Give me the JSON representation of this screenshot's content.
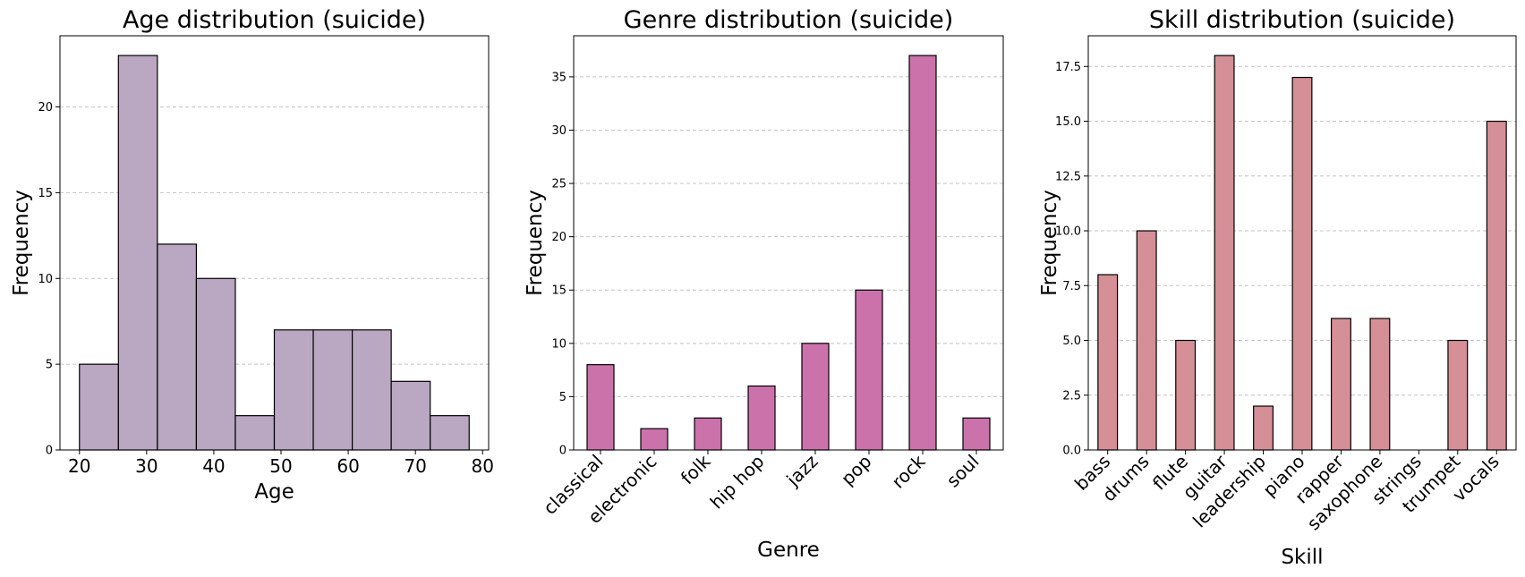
{
  "chart_data": [
    {
      "type": "bar",
      "subtype": "histogram",
      "title": "Age distribution (suicide)",
      "xlabel": "Age",
      "ylabel": "Frequency",
      "bin_edges": [
        20.0,
        25.8,
        31.6,
        37.4,
        43.2,
        49.0,
        54.8,
        60.6,
        66.4,
        72.2,
        78.0
      ],
      "values": [
        5,
        23,
        12,
        10,
        2,
        7,
        7,
        7,
        4,
        2
      ],
      "xlim": [
        17.1,
        80.9
      ],
      "ylim": [
        0,
        24.15
      ],
      "xticks": [
        20,
        30,
        40,
        50,
        60,
        70,
        80
      ],
      "yticks": [
        0,
        5,
        10,
        15,
        20
      ],
      "color": "#baa8c2",
      "grid": "y-dashed"
    },
    {
      "type": "bar",
      "title": "Genre distribution (suicide)",
      "xlabel": "Genre",
      "ylabel": "Frequency",
      "categories": [
        "classical",
        "electronic",
        "folk",
        "hip hop",
        "jazz",
        "pop",
        "rock",
        "soul"
      ],
      "values": [
        8,
        2,
        3,
        6,
        10,
        15,
        37,
        3
      ],
      "ylim": [
        0,
        38.85
      ],
      "yticks": [
        0,
        5,
        10,
        15,
        20,
        25,
        30,
        35
      ],
      "color": "#cb72ab",
      "grid": "y-dashed"
    },
    {
      "type": "bar",
      "title": "Skill distribution (suicide)",
      "xlabel": "Skill",
      "ylabel": "Frequency",
      "categories": [
        "bass",
        "drums",
        "flute",
        "guitar",
        "leadership",
        "piano",
        "rapper",
        "saxophone",
        "strings",
        "trumpet",
        "vocals"
      ],
      "values": [
        8,
        10,
        5,
        18,
        2,
        17,
        6,
        6,
        0,
        5,
        15
      ],
      "ylim": [
        0,
        18.9
      ],
      "yticks": [
        0.0,
        2.5,
        5.0,
        7.5,
        10.0,
        12.5,
        15.0,
        17.5
      ],
      "color": "#d48f97",
      "grid": "y-dashed"
    }
  ]
}
